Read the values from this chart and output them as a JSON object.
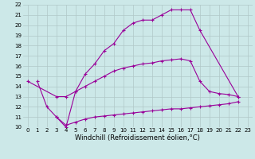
{
  "line1_x": [
    1,
    2,
    3,
    4,
    5,
    6,
    7,
    8,
    9,
    10,
    11,
    12,
    13,
    14,
    15,
    16,
    17,
    18,
    22
  ],
  "line1_y": [
    14.5,
    12.0,
    11.0,
    10.0,
    13.5,
    15.2,
    16.2,
    17.5,
    18.2,
    19.5,
    20.2,
    20.5,
    20.5,
    21.0,
    21.5,
    21.5,
    21.5,
    19.5,
    13.0
  ],
  "line2_x": [
    0,
    3,
    4,
    5,
    6,
    7,
    8,
    9,
    10,
    11,
    12,
    13,
    14,
    15,
    16,
    17,
    18,
    19,
    20,
    21,
    22
  ],
  "line2_y": [
    14.5,
    13.0,
    13.0,
    13.5,
    14.0,
    14.5,
    15.0,
    15.5,
    15.8,
    16.0,
    16.2,
    16.3,
    16.5,
    16.6,
    16.7,
    16.5,
    14.5,
    13.5,
    13.3,
    13.2,
    13.0
  ],
  "line3_x": [
    3,
    4,
    5,
    6,
    7,
    8,
    9,
    10,
    11,
    12,
    13,
    14,
    15,
    16,
    17,
    18,
    19,
    20,
    21,
    22
  ],
  "line3_y": [
    11.0,
    10.2,
    10.5,
    10.8,
    11.0,
    11.1,
    11.2,
    11.3,
    11.4,
    11.5,
    11.6,
    11.7,
    11.8,
    11.8,
    11.9,
    12.0,
    12.1,
    12.2,
    12.3,
    12.5
  ],
  "color": "#990099",
  "bg_color": "#cce8e8",
  "grid_color": "#b0c8c8",
  "xlabel": "Windchill (Refroidissement éolien,°C)",
  "xlim": [
    -0.5,
    23.5
  ],
  "ylim": [
    10,
    22
  ],
  "xticks": [
    0,
    1,
    2,
    3,
    4,
    5,
    6,
    7,
    8,
    9,
    10,
    11,
    12,
    13,
    14,
    15,
    16,
    17,
    18,
    19,
    20,
    21,
    22,
    23
  ],
  "yticks": [
    10,
    11,
    12,
    13,
    14,
    15,
    16,
    17,
    18,
    19,
    20,
    21,
    22
  ],
  "marker": "+",
  "markersize": 3,
  "linewidth": 0.8,
  "tick_fontsize": 5,
  "xlabel_fontsize": 6
}
